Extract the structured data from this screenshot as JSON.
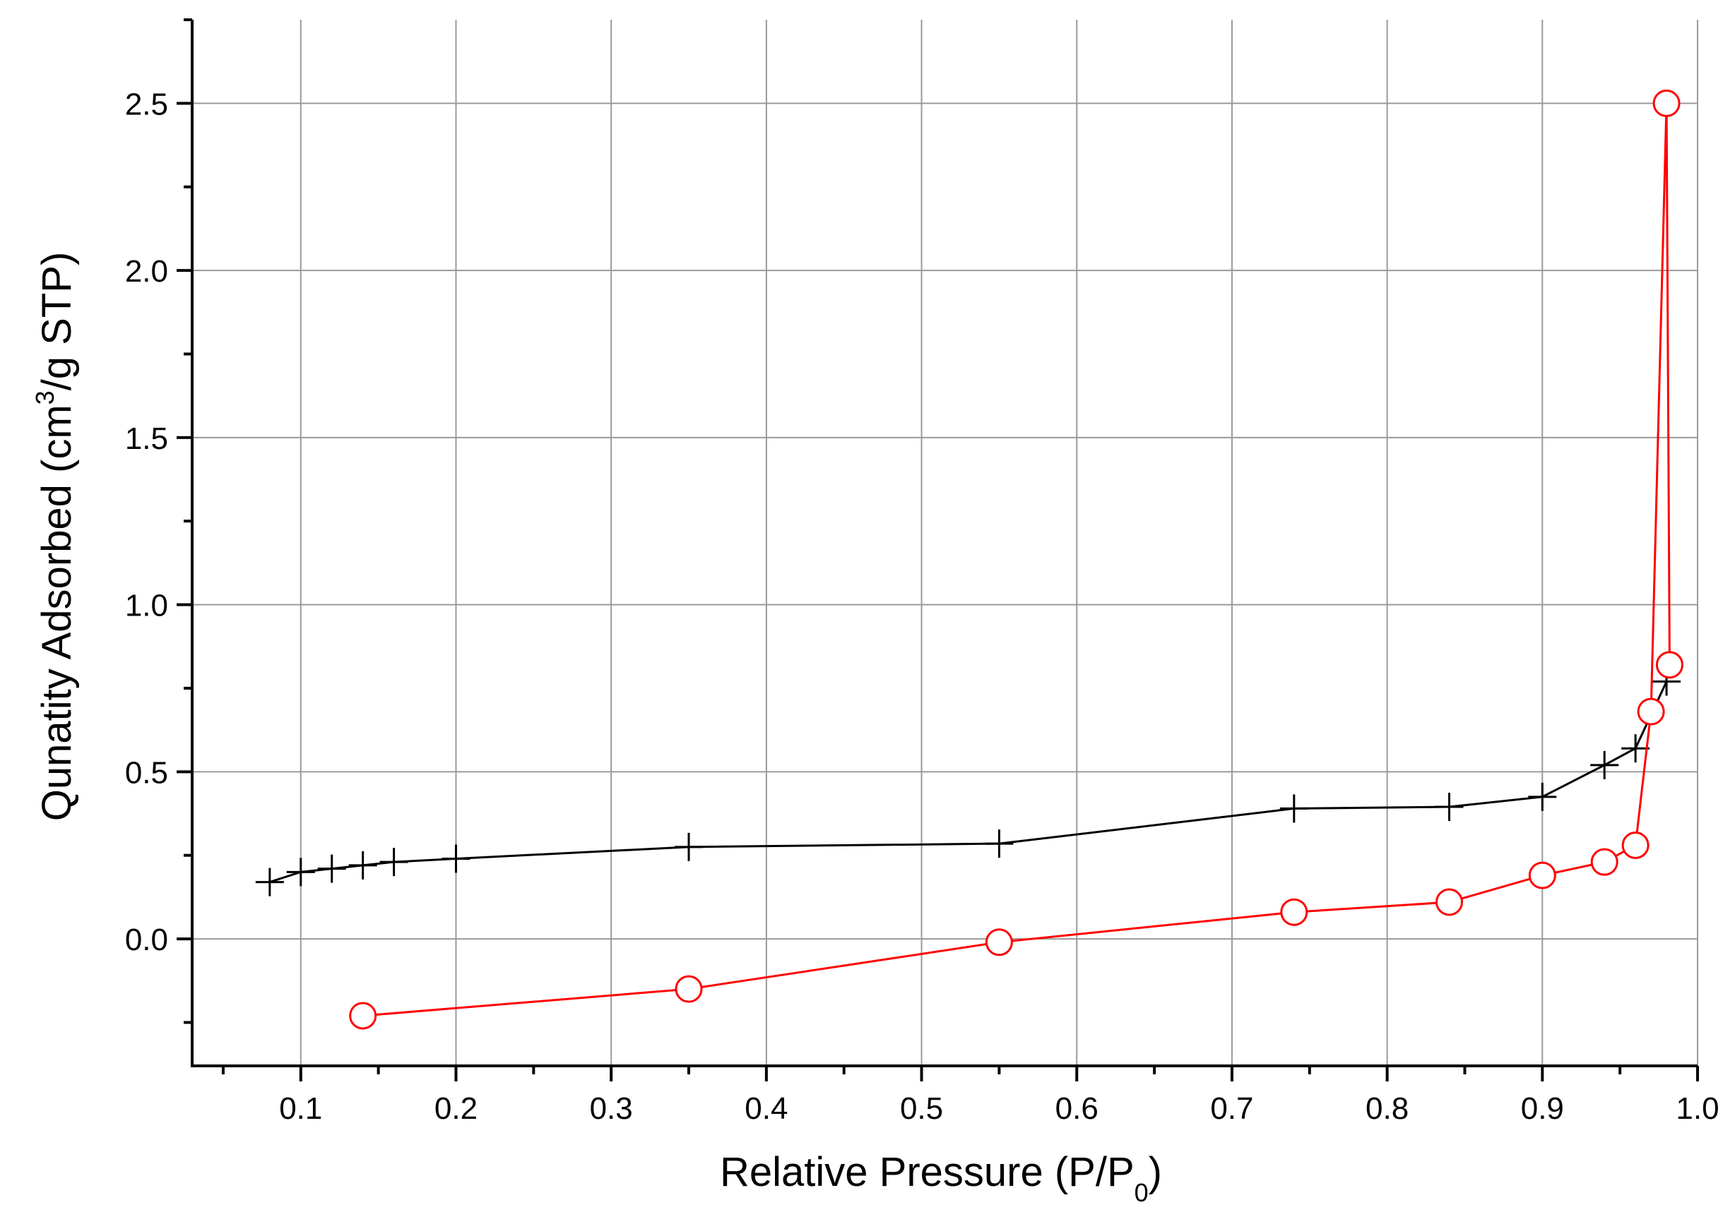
{
  "chart_data": {
    "type": "line",
    "title": "",
    "xlabel": {
      "main": "Relative Pressure (P/P",
      "sub": "0",
      "end": ")"
    },
    "ylabel": {
      "main": "Qunatity Adsorbed (cm",
      "sup": "3",
      "end": "/g STP)"
    },
    "xlim": [
      0.03,
      1.0
    ],
    "ylim": [
      -0.38,
      2.75
    ],
    "x_ticks": [
      0.1,
      0.2,
      0.3,
      0.4,
      0.5,
      0.6,
      0.7,
      0.8,
      0.9,
      1.0
    ],
    "x_tick_labels": [
      "0.1",
      "0.2",
      "0.3",
      "0.4",
      "0.5",
      "0.6",
      "0.7",
      "0.8",
      "0.9",
      "1.0"
    ],
    "y_ticks": [
      0.0,
      0.5,
      1.0,
      1.5,
      2.0,
      2.5
    ],
    "y_tick_labels": [
      "0.0",
      "0.5",
      "1.0",
      "1.5",
      "2.0",
      "2.5"
    ],
    "grid": true,
    "legend": "none",
    "series": [
      {
        "marker": "plus",
        "color": "#000000",
        "x": [
          0.08,
          0.1,
          0.12,
          0.14,
          0.16,
          0.2,
          0.35,
          0.55,
          0.74,
          0.84,
          0.9,
          0.94,
          0.96,
          0.98
        ],
        "y": [
          0.17,
          0.2,
          0.21,
          0.22,
          0.23,
          0.24,
          0.275,
          0.285,
          0.39,
          0.395,
          0.425,
          0.52,
          0.57,
          0.77
        ]
      },
      {
        "marker": "circle",
        "color": "#ff0000",
        "x": [
          0.14,
          0.35,
          0.55,
          0.74,
          0.84,
          0.9,
          0.94,
          0.96,
          0.97,
          0.98,
          0.982
        ],
        "y": [
          -0.23,
          -0.15,
          -0.01,
          0.08,
          0.11,
          0.19,
          0.23,
          0.28,
          0.68,
          2.5,
          0.82
        ]
      }
    ]
  }
}
